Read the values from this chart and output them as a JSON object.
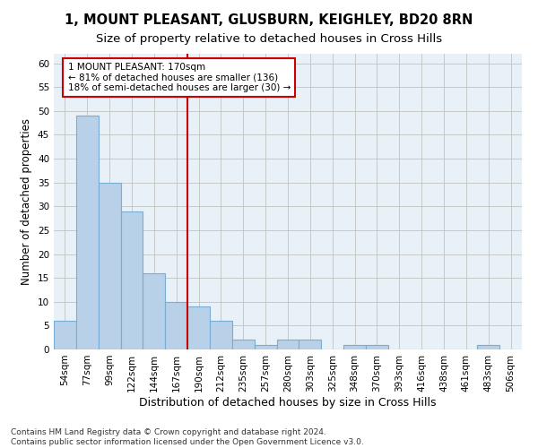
{
  "title": "1, MOUNT PLEASANT, GLUSBURN, KEIGHLEY, BD20 8RN",
  "subtitle": "Size of property relative to detached houses in Cross Hills",
  "xlabel": "Distribution of detached houses by size in Cross Hills",
  "ylabel": "Number of detached properties",
  "bar_labels": [
    "54sqm",
    "77sqm",
    "99sqm",
    "122sqm",
    "144sqm",
    "167sqm",
    "190sqm",
    "212sqm",
    "235sqm",
    "257sqm",
    "280sqm",
    "303sqm",
    "325sqm",
    "348sqm",
    "370sqm",
    "393sqm",
    "416sqm",
    "438sqm",
    "461sqm",
    "483sqm",
    "506sqm"
  ],
  "bar_values": [
    6,
    49,
    35,
    29,
    16,
    10,
    9,
    6,
    2,
    1,
    2,
    2,
    0,
    1,
    1,
    0,
    0,
    0,
    0,
    1,
    0
  ],
  "bar_color": "#b8d0e8",
  "bar_edgecolor": "#7aadd4",
  "bar_linewidth": 0.8,
  "grid_color": "#c8c8c8",
  "background_color": "#e8f0f8",
  "annotation_box_text": "1 MOUNT PLEASANT: 170sqm\n← 81% of detached houses are smaller (136)\n18% of semi-detached houses are larger (30) →",
  "annotation_box_edgecolor": "#cc0000",
  "vline_x": 5.5,
  "vline_color": "#cc0000",
  "vline_linewidth": 1.5,
  "ylim": [
    0,
    62
  ],
  "yticks": [
    0,
    5,
    10,
    15,
    20,
    25,
    30,
    35,
    40,
    45,
    50,
    55,
    60
  ],
  "title_fontsize": 10.5,
  "subtitle_fontsize": 9.5,
  "xlabel_fontsize": 9,
  "ylabel_fontsize": 8.5,
  "tick_fontsize": 7.5,
  "annotation_fontsize": 7.5,
  "footer_text": "Contains HM Land Registry data © Crown copyright and database right 2024.\nContains public sector information licensed under the Open Government Licence v3.0.",
  "footer_fontsize": 6.5
}
